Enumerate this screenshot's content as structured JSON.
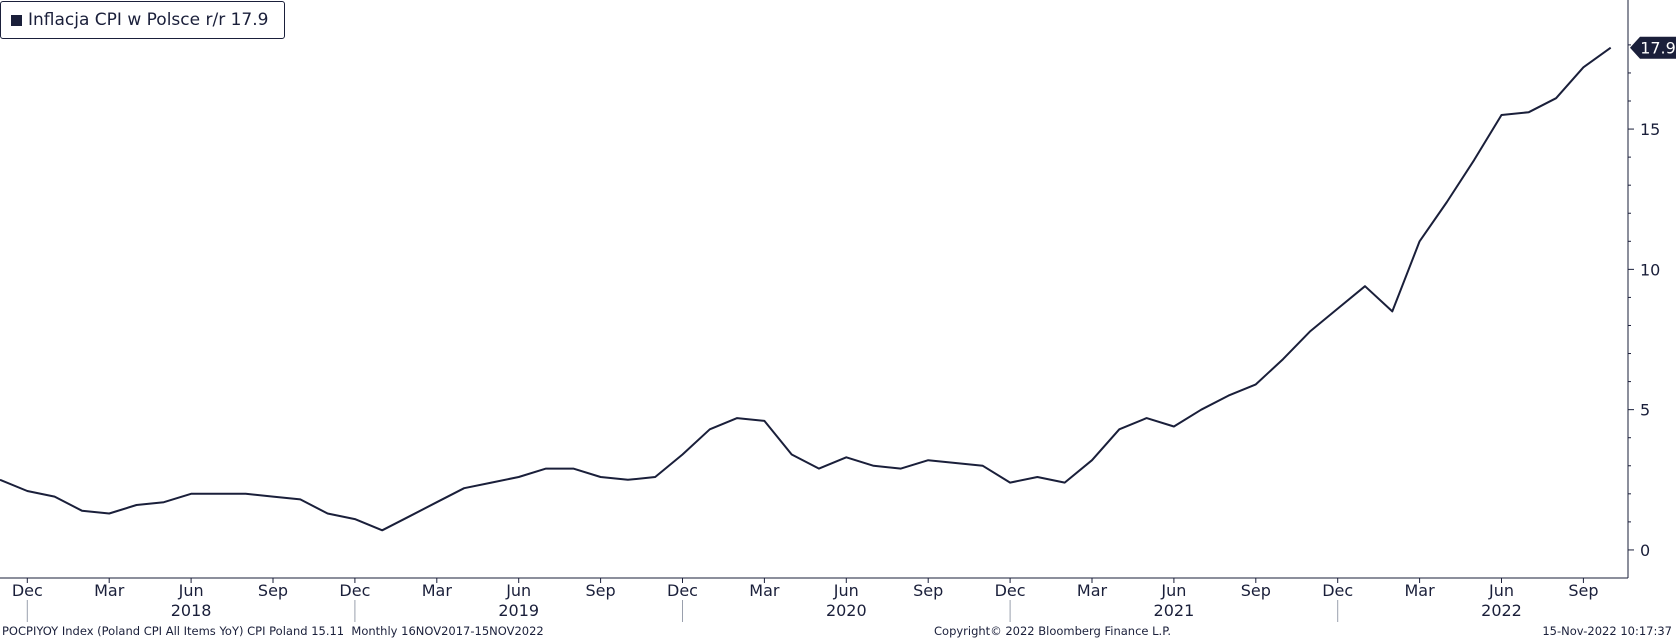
{
  "legend": {
    "label": "Inflacja CPI w Polsce r/r",
    "value": "17.9"
  },
  "footer": {
    "left": "POCPIYOY Index (Poland CPI All Items YoY) CPI Poland 15.11  Monthly 16NOV2017-15NOV2022",
    "center": "Copyright© 2022 Bloomberg Finance L.P.",
    "right": "15-Nov-2022 10:17:37"
  },
  "colors": {
    "line": "#1a1f3a",
    "axis": "#1a1f3a",
    "badge": "#1a1f3a",
    "badge_text": "#ffffff"
  },
  "chart_data": {
    "type": "line",
    "title": "",
    "xlabel": "",
    "ylabel": "",
    "ylim": [
      -1,
      19.6
    ],
    "yticks": [
      0,
      5,
      10,
      15
    ],
    "grid": false,
    "legend_position": "top-left",
    "last_value_label": "17.9",
    "x_month_labels": [
      "Dec",
      "Mar",
      "Jun",
      "Sep",
      "Dec",
      "Mar",
      "Jun",
      "Sep",
      "Dec",
      "Mar",
      "Jun",
      "Sep",
      "Dec",
      "Mar",
      "Jun",
      "Sep",
      "Dec",
      "Mar",
      "Jun",
      "Sep"
    ],
    "x_year_labels": [
      "2018",
      "2019",
      "2020",
      "2021",
      "2022"
    ],
    "series": [
      {
        "name": "Inflacja CPI w Polsce r/r",
        "x": [
          "2017-11",
          "2017-12",
          "2018-01",
          "2018-02",
          "2018-03",
          "2018-04",
          "2018-05",
          "2018-06",
          "2018-07",
          "2018-08",
          "2018-09",
          "2018-10",
          "2018-11",
          "2018-12",
          "2019-01",
          "2019-02",
          "2019-03",
          "2019-04",
          "2019-05",
          "2019-06",
          "2019-07",
          "2019-08",
          "2019-09",
          "2019-10",
          "2019-11",
          "2019-12",
          "2020-01",
          "2020-02",
          "2020-03",
          "2020-04",
          "2020-05",
          "2020-06",
          "2020-07",
          "2020-08",
          "2020-09",
          "2020-10",
          "2020-11",
          "2020-12",
          "2021-01",
          "2021-02",
          "2021-03",
          "2021-04",
          "2021-05",
          "2021-06",
          "2021-07",
          "2021-08",
          "2021-09",
          "2021-10",
          "2021-11",
          "2021-12",
          "2022-01",
          "2022-02",
          "2022-03",
          "2022-04",
          "2022-05",
          "2022-06",
          "2022-07",
          "2022-08",
          "2022-09",
          "2022-10"
        ],
        "values": [
          2.5,
          2.1,
          1.9,
          1.4,
          1.3,
          1.6,
          1.7,
          2.0,
          2.0,
          2.0,
          1.9,
          1.8,
          1.3,
          1.1,
          0.7,
          1.2,
          1.7,
          2.2,
          2.4,
          2.6,
          2.9,
          2.9,
          2.6,
          2.5,
          2.6,
          3.4,
          4.3,
          4.7,
          4.6,
          3.4,
          2.9,
          3.3,
          3.0,
          2.9,
          3.2,
          3.1,
          3.0,
          2.4,
          2.6,
          2.4,
          3.2,
          4.3,
          4.7,
          4.4,
          5.0,
          5.5,
          5.9,
          6.8,
          7.8,
          8.6,
          9.4,
          8.5,
          11.0,
          12.4,
          13.9,
          15.5,
          15.6,
          16.1,
          17.2,
          17.9
        ]
      }
    ]
  }
}
